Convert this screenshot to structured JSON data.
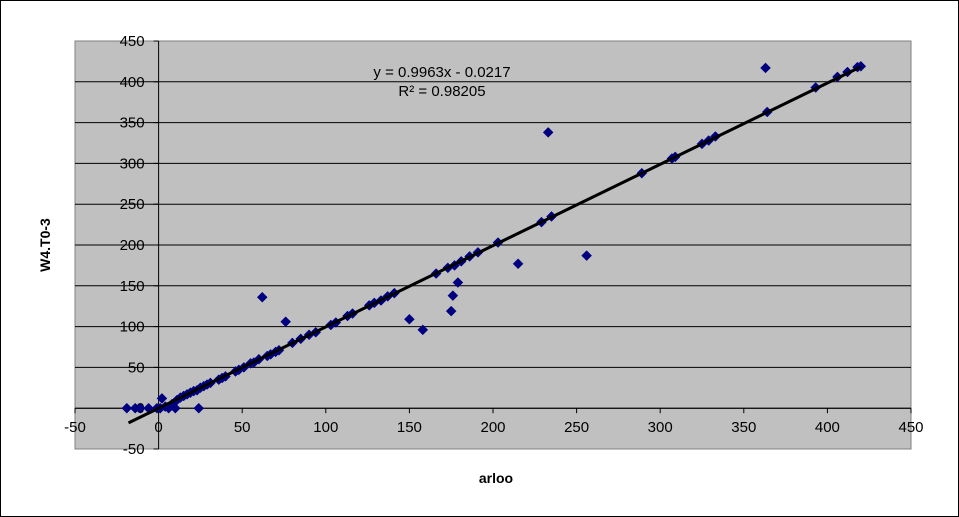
{
  "chart_data": {
    "type": "scatter",
    "title": "",
    "xlabel": "arloo",
    "ylabel": "W4.T0-3",
    "xlim": [
      -50,
      450
    ],
    "ylim": [
      -50,
      450
    ],
    "x_ticks": [
      -50,
      0,
      50,
      100,
      150,
      200,
      250,
      300,
      350,
      400,
      450
    ],
    "y_ticks": [
      -50,
      0,
      50,
      100,
      150,
      200,
      250,
      300,
      350,
      400,
      450
    ],
    "grid": "horizontal",
    "plot_background": "#c0c0c0",
    "marker": "diamond",
    "marker_color": "#000080",
    "trendline": {
      "type": "linear",
      "slope": 0.9963,
      "intercept": -0.0217,
      "equation_label": "y = 0.9963x - 0.0217",
      "r2_label": "R² = 0.98205",
      "color": "#000000",
      "x_range": [
        -18,
        420
      ]
    },
    "series": [
      {
        "points": [
          [
            -19,
            0
          ],
          [
            -14,
            0
          ],
          [
            -11,
            0
          ],
          [
            -6,
            0
          ],
          [
            -1,
            0
          ],
          [
            1,
            0
          ],
          [
            2,
            12
          ],
          [
            4,
            2
          ],
          [
            6,
            0
          ],
          [
            8,
            5
          ],
          [
            10,
            0
          ],
          [
            11,
            10
          ],
          [
            13,
            13
          ],
          [
            15,
            15
          ],
          [
            17,
            17
          ],
          [
            19,
            19
          ],
          [
            21,
            21
          ],
          [
            23,
            22
          ],
          [
            24,
            0
          ],
          [
            25,
            25
          ],
          [
            27,
            27
          ],
          [
            29,
            29
          ],
          [
            31,
            31
          ],
          [
            36,
            35
          ],
          [
            38,
            37
          ],
          [
            40,
            39
          ],
          [
            46,
            45
          ],
          [
            48,
            47
          ],
          [
            51,
            50
          ],
          [
            55,
            55
          ],
          [
            57,
            56
          ],
          [
            60,
            60
          ],
          [
            62,
            136
          ],
          [
            65,
            64
          ],
          [
            67,
            66
          ],
          [
            70,
            69
          ],
          [
            72,
            71
          ],
          [
            76,
            106
          ],
          [
            80,
            80
          ],
          [
            85,
            85
          ],
          [
            90,
            90
          ],
          [
            94,
            93
          ],
          [
            103,
            102
          ],
          [
            106,
            105
          ],
          [
            113,
            113
          ],
          [
            116,
            116
          ],
          [
            126,
            126
          ],
          [
            129,
            129
          ],
          [
            133,
            132
          ],
          [
            137,
            137
          ],
          [
            141,
            141
          ],
          [
            150,
            109
          ],
          [
            158,
            96
          ],
          [
            166,
            165
          ],
          [
            173,
            172
          ],
          [
            175,
            119
          ],
          [
            176,
            138
          ],
          [
            177,
            175
          ],
          [
            179,
            154
          ],
          [
            181,
            180
          ],
          [
            186,
            186
          ],
          [
            191,
            191
          ],
          [
            203,
            203
          ],
          [
            215,
            177
          ],
          [
            229,
            228
          ],
          [
            233,
            338
          ],
          [
            235,
            235
          ],
          [
            256,
            187
          ],
          [
            289,
            288
          ],
          [
            307,
            306
          ],
          [
            309,
            308
          ],
          [
            325,
            324
          ],
          [
            329,
            328
          ],
          [
            333,
            333
          ],
          [
            363,
            417
          ],
          [
            364,
            363
          ],
          [
            393,
            393
          ],
          [
            406,
            406
          ],
          [
            412,
            412
          ],
          [
            418,
            418
          ],
          [
            420,
            419
          ]
        ]
      }
    ]
  }
}
